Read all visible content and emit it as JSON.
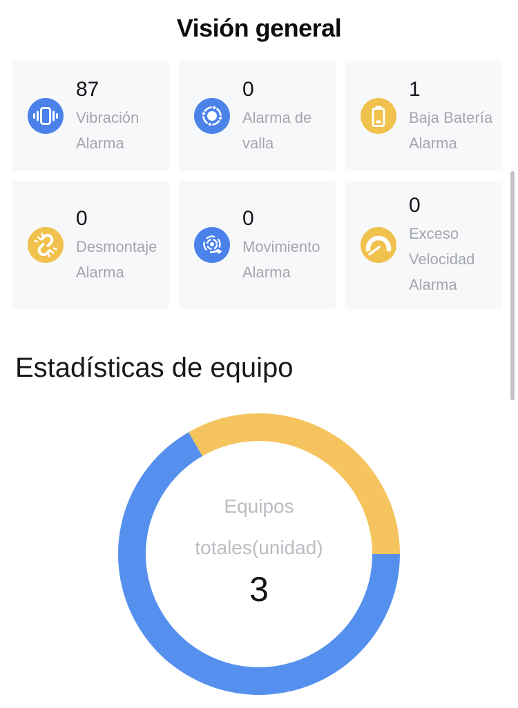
{
  "header": {
    "title": "Visión general"
  },
  "overview_cards": [
    {
      "id": "vibration",
      "value": "87",
      "label": "Vibración Alarma",
      "icon": "vibration-icon",
      "icon_bg": "#4a82ea"
    },
    {
      "id": "fence",
      "value": "0",
      "label": "Alarma de valla",
      "icon": "fence-icon",
      "icon_bg": "#4a82ea"
    },
    {
      "id": "low-battery",
      "value": "1",
      "label": "Baja Batería Alarma",
      "icon": "battery-icon",
      "icon_bg": "#f0c14d"
    },
    {
      "id": "dismantle",
      "value": "0",
      "label": "Desmontaje Alarma",
      "icon": "broken-link-icon",
      "icon_bg": "#f0c14d"
    },
    {
      "id": "movement",
      "value": "0",
      "label": "Movimiento Alarma",
      "icon": "movement-icon",
      "icon_bg": "#4a82ea"
    },
    {
      "id": "overspeed",
      "value": "0",
      "label": "Exceso Velocidad Alarma",
      "icon": "speedometer-icon",
      "icon_bg": "#f0c14d"
    }
  ],
  "section": {
    "title": "Estadísticas de equipo"
  },
  "chart_data": {
    "type": "pie",
    "subtype": "donut",
    "title": "Estadísticas de equipo",
    "center_label_line1": "Equipos",
    "center_label_line2": "totales(unidad)",
    "center_value": "3",
    "total_units": 3,
    "start_angle_deg": 120,
    "direction": "clockwise",
    "legend": "none-visible",
    "segments": [
      {
        "value": 1,
        "color": "#f5c45e"
      },
      {
        "value": 2,
        "color": "#5590ee"
      }
    ]
  },
  "colors": {
    "accent_blue": "#4a82ea",
    "accent_yellow": "#f0c14d",
    "chart_blue": "#5590ee",
    "chart_yellow": "#f5c45e",
    "card_background": "#f7f8fa",
    "label_gray": "#a3a6ab",
    "center_text_gray": "#b9bcc1"
  }
}
